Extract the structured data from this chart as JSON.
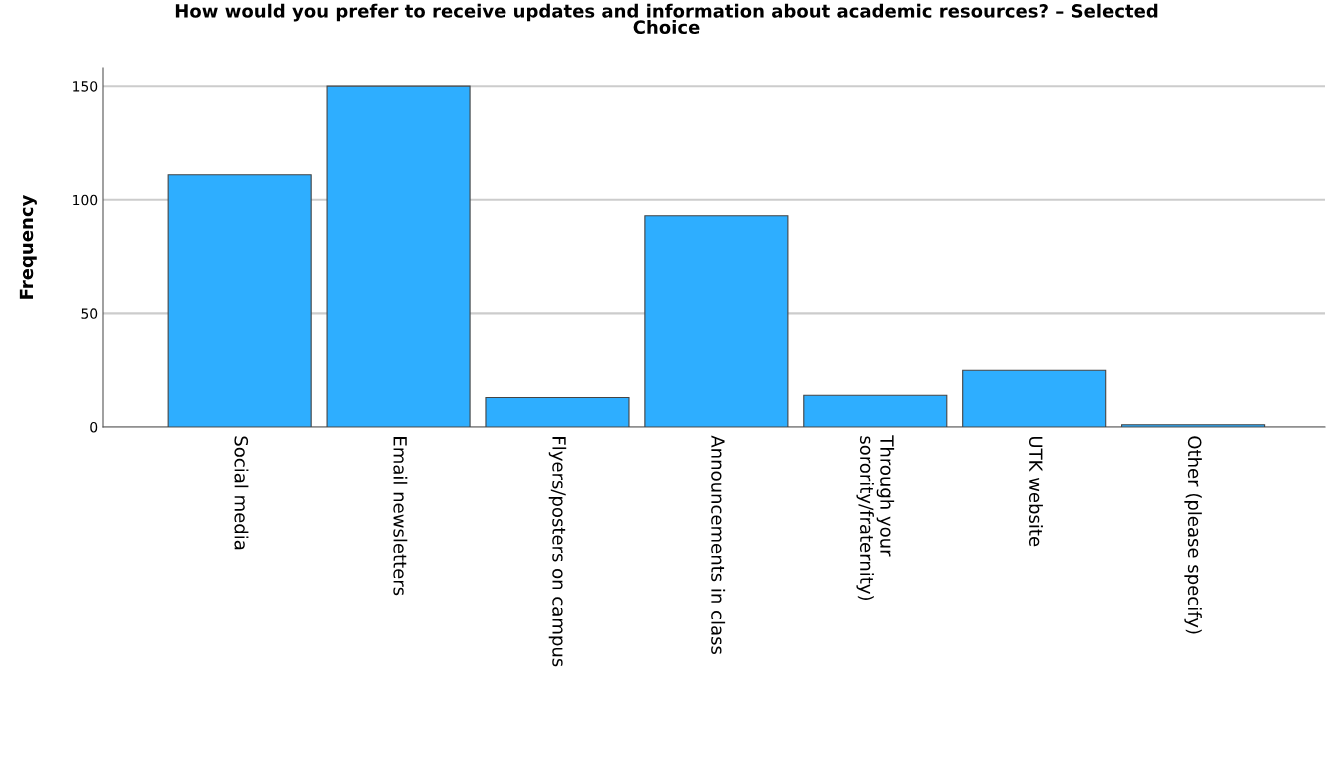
{
  "chart_data": {
    "type": "bar",
    "title": "How would you prefer to receive updates and information about academic resources? – Selected\nChoice",
    "ylabel": "Frequency",
    "categories": [
      "Social media",
      "Email newsletters",
      "Flyers/posters on campus",
      "Announcements in class",
      "Through your\nsorority/fraternity)",
      "UTK website",
      "Other (please specify)"
    ],
    "values": [
      111,
      150,
      13,
      93,
      14,
      25,
      1
    ],
    "color": "#2eaeff",
    "ylim": [
      0,
      158
    ],
    "yticks": [
      0,
      50,
      100,
      150
    ],
    "grid": "y"
  }
}
